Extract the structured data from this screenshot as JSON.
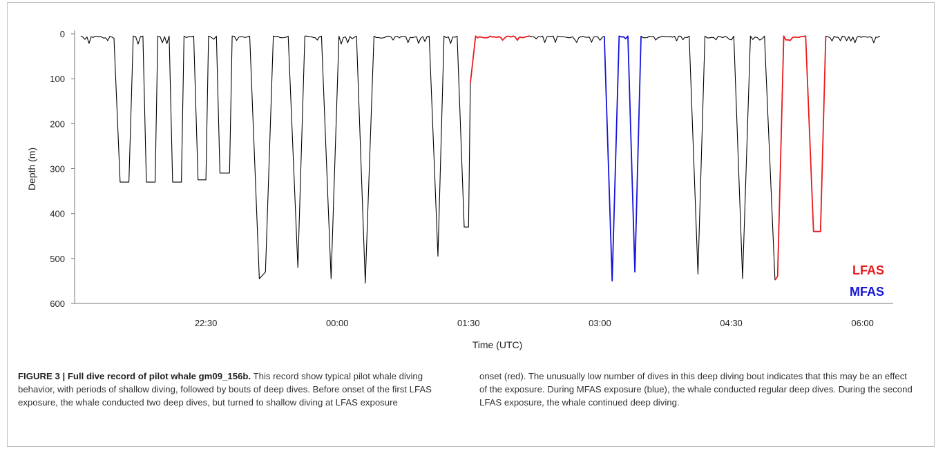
{
  "chart_data": {
    "type": "line",
    "xlabel": "Time (UTC)",
    "ylabel": "Depth (m)",
    "x_unit": "hours since 21:00 UTC (axis prints clock time)",
    "xlim": [
      0,
      9.35
    ],
    "ylim": [
      0,
      600
    ],
    "y_inverted": true,
    "y_ticks": [
      0,
      100,
      200,
      300,
      400,
      500,
      600
    ],
    "x_ticks": [
      {
        "label": "22:30",
        "value": 1.5
      },
      {
        "label": "00:00",
        "value": 3.0
      },
      {
        "label": "01:30",
        "value": 4.5
      },
      {
        "label": "03:00",
        "value": 6.0
      },
      {
        "label": "04:30",
        "value": 7.5
      },
      {
        "label": "06:00",
        "value": 9.0
      }
    ],
    "legend": {
      "placement": "bottom-right",
      "entries": [
        {
          "name": "LFAS",
          "color": "#e8191c"
        },
        {
          "name": "MFAS",
          "color": "#1515d8"
        }
      ]
    },
    "series": [
      {
        "name": "",
        "color": "#000000",
        "points": [
          [
            0.07,
            5
          ],
          [
            0.45,
            10
          ],
          [
            0.52,
            330
          ],
          [
            0.62,
            330
          ],
          [
            0.67,
            5
          ],
          [
            0.78,
            5
          ],
          [
            0.82,
            330
          ],
          [
            0.92,
            330
          ],
          [
            0.95,
            5
          ],
          [
            1.08,
            5
          ],
          [
            1.12,
            330
          ],
          [
            1.22,
            330
          ],
          [
            1.25,
            5
          ],
          [
            1.36,
            5
          ],
          [
            1.41,
            325
          ],
          [
            1.5,
            325
          ],
          [
            1.53,
            5
          ],
          [
            1.62,
            5
          ],
          [
            1.66,
            310
          ],
          [
            1.77,
            310
          ],
          [
            1.8,
            5
          ],
          [
            2.0,
            5
          ],
          [
            2.11,
            545
          ],
          [
            2.18,
            530
          ],
          [
            2.27,
            5
          ],
          [
            2.44,
            5
          ],
          [
            2.55,
            520
          ],
          [
            2.63,
            5
          ],
          [
            2.82,
            5
          ],
          [
            2.93,
            545
          ],
          [
            3.02,
            5
          ],
          [
            3.22,
            5
          ],
          [
            3.32,
            555
          ],
          [
            3.42,
            5
          ],
          [
            4.05,
            5
          ],
          [
            4.15,
            495
          ],
          [
            4.22,
            5
          ],
          [
            4.37,
            5
          ],
          [
            4.45,
            430
          ],
          [
            4.5,
            430
          ],
          [
            4.52,
            110
          ]
        ]
      },
      {
        "name": "LFAS",
        "color": "#e8191c",
        "points": [
          [
            4.52,
            110
          ],
          [
            4.58,
            5
          ],
          [
            5.2,
            5
          ]
        ]
      },
      {
        "name": "",
        "color": "#000000",
        "points": [
          [
            5.2,
            5
          ],
          [
            6.05,
            5
          ]
        ]
      },
      {
        "name": "MFAS",
        "color": "#1515d8",
        "points": [
          [
            6.05,
            5
          ],
          [
            6.14,
            550
          ],
          [
            6.22,
            5
          ],
          [
            6.32,
            5
          ],
          [
            6.4,
            530
          ],
          [
            6.47,
            5
          ]
        ]
      },
      {
        "name": "",
        "color": "#000000",
        "points": [
          [
            6.47,
            5
          ],
          [
            7.02,
            5
          ],
          [
            7.12,
            535
          ],
          [
            7.2,
            5
          ],
          [
            7.53,
            5
          ],
          [
            7.63,
            545
          ],
          [
            7.72,
            5
          ],
          [
            7.88,
            5
          ],
          [
            8.0,
            548
          ]
        ]
      },
      {
        "name": "LFAS",
        "color": "#e8191c",
        "points": [
          [
            8.0,
            548
          ],
          [
            8.03,
            540
          ],
          [
            8.1,
            5
          ],
          [
            8.35,
            5
          ],
          [
            8.44,
            440
          ],
          [
            8.52,
            440
          ],
          [
            8.58,
            5
          ]
        ]
      },
      {
        "name": "",
        "color": "#000000",
        "points": [
          [
            8.58,
            5
          ],
          [
            9.2,
            5
          ]
        ]
      }
    ]
  },
  "caption": {
    "label": "FIGURE 3 | Full dive record of pilot whale gm09_156b.",
    "text_left": " This record show typical pilot whale diving behavior, with periods of shallow diving, followed by bouts of deep dives. Before onset of the first LFAS exposure, the whale conducted two deep dives, but turned to shallow diving at LFAS exposure",
    "text_right": "onset (red). The unusually low number of dives in this deep diving bout indicates that this may be an effect of the exposure. During MFAS exposure (blue), the whale conducted regular deep dives. During the second LFAS exposure, the whale continued deep diving."
  }
}
